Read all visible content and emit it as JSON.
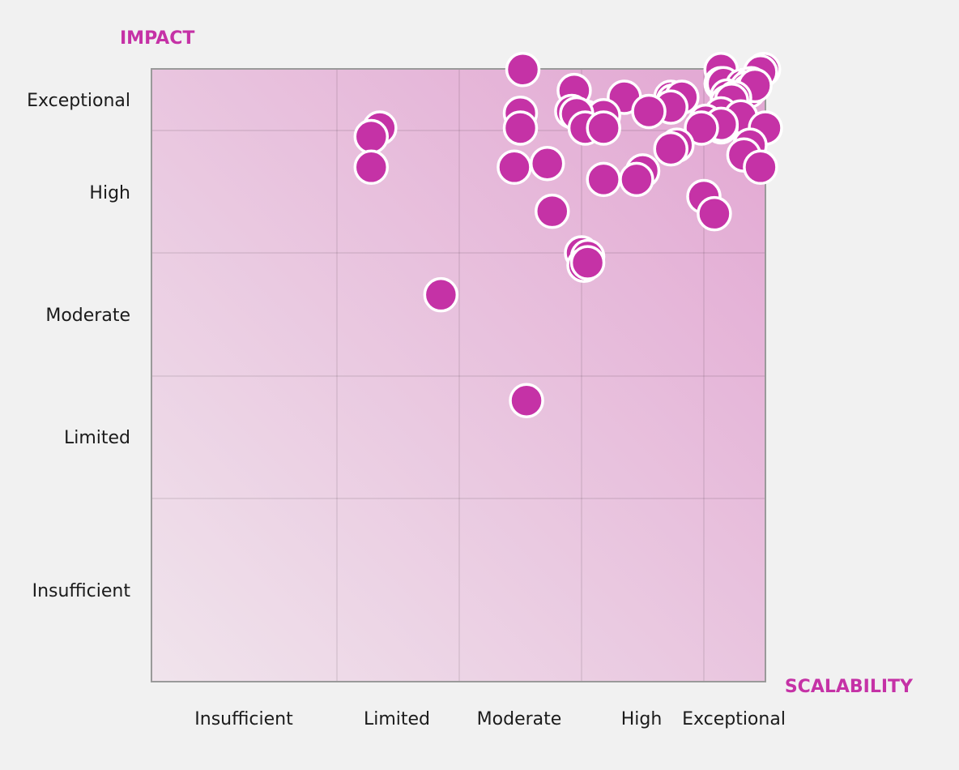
{
  "chart_data": {
    "type": "scatter",
    "title": "",
    "xlabel": "SCALABILITY",
    "ylabel": "IMPACT",
    "x_categories": [
      "Insufficient",
      "Limited",
      "Moderate",
      "High",
      "Exceptional"
    ],
    "y_categories": [
      "Insufficient",
      "Limited",
      "Moderate",
      "High",
      "Exceptional"
    ],
    "x_range": [
      0,
      5
    ],
    "y_range": [
      0,
      5
    ],
    "grid": true,
    "legend": "none",
    "colors": {
      "point": "#c532a6",
      "point_outline": "#ffffff",
      "axis_title": "#c532a6",
      "background_low": "#f0e4ec",
      "background_high": "#e2a6d2"
    },
    "points": [
      {
        "x": 2.52,
        "y": 4.99
      },
      {
        "x": 4.28,
        "y": 4.99
      },
      {
        "x": 4.97,
        "y": 4.99
      },
      {
        "x": 4.92,
        "y": 4.95
      },
      {
        "x": 4.28,
        "y": 4.76
      },
      {
        "x": 4.32,
        "y": 4.76
      },
      {
        "x": 4.63,
        "y": 4.73
      },
      {
        "x": 4.77,
        "y": 4.76
      },
      {
        "x": 4.7,
        "y": 4.69
      },
      {
        "x": 4.73,
        "y": 4.64
      },
      {
        "x": 4.83,
        "y": 4.73
      },
      {
        "x": 2.94,
        "y": 4.65
      },
      {
        "x": 3.73,
        "y": 4.54
      },
      {
        "x": 3.75,
        "y": 4.48
      },
      {
        "x": 3.35,
        "y": 4.54
      },
      {
        "x": 3.82,
        "y": 4.54
      },
      {
        "x": 4.38,
        "y": 4.56
      },
      {
        "x": 4.38,
        "y": 4.46
      },
      {
        "x": 4.5,
        "y": 4.53
      },
      {
        "x": 4.45,
        "y": 4.49
      },
      {
        "x": 3.73,
        "y": 4.38
      },
      {
        "x": 3.55,
        "y": 4.31
      },
      {
        "x": 2.5,
        "y": 4.28
      },
      {
        "x": 2.92,
        "y": 4.31
      },
      {
        "x": 3.03,
        "y": 4.22
      },
      {
        "x": 3.18,
        "y": 4.24
      },
      {
        "x": 2.96,
        "y": 4.27
      },
      {
        "x": 4.28,
        "y": 4.27
      },
      {
        "x": 4.6,
        "y": 4.22
      },
      {
        "x": 4.03,
        "y": 4.15
      },
      {
        "x": 4.28,
        "y": 4.06
      },
      {
        "x": 4.28,
        "y": 4.1
      },
      {
        "x": 2.5,
        "y": 4.04
      },
      {
        "x": 3.03,
        "y": 4.04
      },
      {
        "x": 3.18,
        "y": 4.04
      },
      {
        "x": 3.98,
        "y": 4.04
      },
      {
        "x": 5.0,
        "y": 4.04
      },
      {
        "x": 1.35,
        "y": 4.04
      },
      {
        "x": 1.28,
        "y": 3.95
      },
      {
        "x": 3.78,
        "y": 3.88
      },
      {
        "x": 3.73,
        "y": 3.85
      },
      {
        "x": 4.75,
        "y": 3.88
      },
      {
        "x": 4.65,
        "y": 3.8
      },
      {
        "x": 4.92,
        "y": 3.7
      },
      {
        "x": 1.28,
        "y": 3.7
      },
      {
        "x": 2.72,
        "y": 3.73
      },
      {
        "x": 2.45,
        "y": 3.7
      },
      {
        "x": 3.5,
        "y": 3.67
      },
      {
        "x": 3.18,
        "y": 3.6
      },
      {
        "x": 3.45,
        "y": 3.6
      },
      {
        "x": 4.0,
        "y": 3.46
      },
      {
        "x": 4.17,
        "y": 3.32
      },
      {
        "x": 2.76,
        "y": 3.34
      },
      {
        "x": 3.0,
        "y": 3.0
      },
      {
        "x": 3.05,
        "y": 2.97
      },
      {
        "x": 3.02,
        "y": 2.9
      },
      {
        "x": 3.05,
        "y": 2.92
      },
      {
        "x": 1.85,
        "y": 2.66
      },
      {
        "x": 2.55,
        "y": 1.8
      }
    ]
  }
}
